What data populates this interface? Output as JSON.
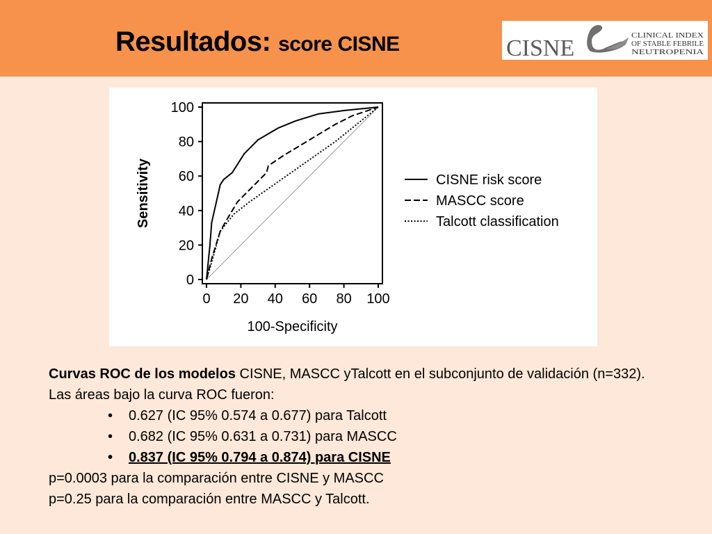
{
  "title": {
    "main": "Resultados:",
    "sub": "score CISNE"
  },
  "logo": {
    "wordmark": "CISNE",
    "tagline": [
      "CLINICAL INDEX",
      "OF STABLE FEBRILE",
      "NEUTROPENIA"
    ]
  },
  "chart_data": {
    "type": "line",
    "xlabel": "100-Specificity",
    "ylabel": "Sensitivity",
    "xlim": [
      0,
      100
    ],
    "ylim": [
      0,
      100
    ],
    "xticks": [
      "0",
      "20",
      "40",
      "60",
      "80",
      "100"
    ],
    "yticks": [
      "0",
      "20",
      "40",
      "60",
      "80",
      "100"
    ],
    "grid": false,
    "legend_position": "right",
    "diagonal_reference": true,
    "series": [
      {
        "name": "CISNE risk score",
        "style": "solid",
        "x": [
          0,
          2,
          3,
          8,
          10,
          15,
          22,
          30,
          42,
          52,
          65,
          80,
          100
        ],
        "y": [
          0,
          20,
          33,
          55,
          58,
          62,
          73,
          81,
          88,
          92,
          96,
          98,
          100
        ]
      },
      {
        "name": "MASCC score",
        "style": "dashed",
        "x": [
          0,
          3,
          8,
          12,
          18,
          25,
          30,
          35,
          36,
          45,
          55,
          65,
          75,
          85,
          100
        ],
        "y": [
          0,
          12,
          28,
          35,
          45,
          52,
          57,
          62,
          66,
          72,
          78,
          84,
          90,
          95,
          100
        ]
      },
      {
        "name": "Talcott classification",
        "style": "dotted",
        "x": [
          0,
          3,
          8,
          12,
          16,
          25,
          35,
          45,
          55,
          65,
          75,
          85,
          100
        ],
        "y": [
          0,
          10,
          28,
          33,
          38,
          45,
          52,
          59,
          66,
          73,
          80,
          88,
          100
        ]
      }
    ]
  },
  "body": {
    "intro_bold": "Curvas ROC de los modelos",
    "intro_rest": " CISNE, MASCC yTalcott en el subconjunto de validación (n=332).",
    "line2": "Las áreas bajo la curva ROC fueron:",
    "bullet_glyph": "•",
    "bullets": [
      "0.627 (IC 95% 0.574 a 0.677) para Talcott",
      "0.682 (IC 95% 0.631 a 0.731) para MASCC",
      "0.837 (IC 95% 0.794 a 0.874) para CISNE"
    ],
    "p1": "p=0.0003 para la comparación entre CISNE y MASCC",
    "p2": "p=0.25 para la comparación entre MASCC y Talcott."
  }
}
